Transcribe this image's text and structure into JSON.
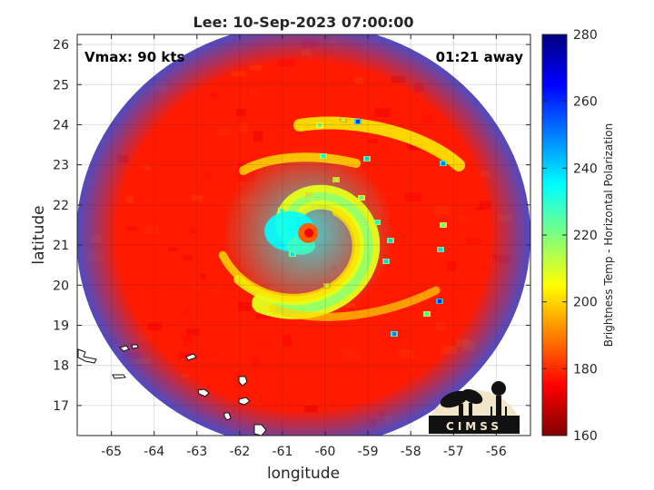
{
  "chart_data": {
    "type": "heatmap",
    "title": "Lee: 10-Sep-2023 07:00:00",
    "xlabel": "longitude",
    "ylabel": "latitude",
    "xlim": [
      -65.8,
      -55.2
    ],
    "ylim": [
      16.25,
      26.25
    ],
    "xticks": [
      -65,
      -64,
      -63,
      -62,
      -61,
      -60,
      -59,
      -58,
      -57,
      -56
    ],
    "yticks": [
      17,
      18,
      19,
      20,
      21,
      22,
      23,
      24,
      25,
      26
    ],
    "grid": true,
    "annotations": {
      "left": "Vmax: 90 kts",
      "right": "01:21 away"
    },
    "storm_center": {
      "lon": -60.4,
      "lat": 21.3
    },
    "colorbar": {
      "label": "Brightness Temp - Horizontal Polarization",
      "range": [
        160,
        280
      ],
      "ticks": [
        160,
        180,
        200,
        220,
        240,
        260,
        280
      ],
      "colormap": "jet"
    },
    "background_temp": 262,
    "eyewall_temp": 205,
    "rainband_cell_temp": 188,
    "swath_edge_color": "#2c55e8"
  },
  "logo": {
    "text": "CIMSS",
    "colors": {
      "fill": "#f1e6c8",
      "ink": "#111111"
    }
  }
}
